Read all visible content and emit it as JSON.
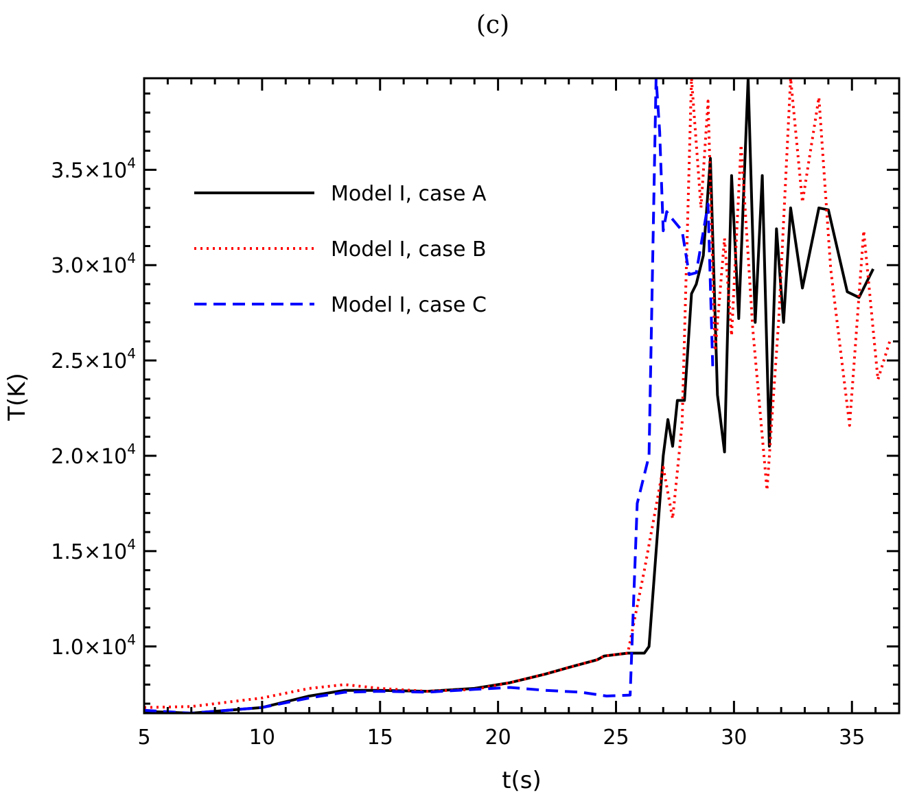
{
  "chart_data": {
    "type": "line",
    "panel_label": "(c)",
    "xlabel": "t(s)",
    "ylabel": "T(K)",
    "xlim": [
      5,
      37
    ],
    "ylim": [
      6500,
      39800
    ],
    "x_ticks": [
      5,
      10,
      15,
      20,
      25,
      30,
      35
    ],
    "x_tick_labels": [
      "5",
      "10",
      "15",
      "20",
      "25",
      "30",
      "35"
    ],
    "y_ticks": [
      10000,
      15000,
      20000,
      25000,
      30000,
      35000
    ],
    "y_tick_mantissas": [
      "1.0",
      "1.5",
      "2.0",
      "2.5",
      "3.0",
      "3.5"
    ],
    "y_tick_base": "×10",
    "y_tick_exponent": "4",
    "legend_position": "upper-left",
    "series": [
      {
        "name": "Model I, case A",
        "color": "#000000",
        "style": "solid",
        "x": [
          5,
          7,
          10,
          12,
          13.5,
          15,
          17,
          19,
          20.5,
          22,
          23,
          24.2,
          24.5,
          25.5,
          26.2,
          26.4,
          27,
          27.2,
          27.4,
          27.6,
          27.9,
          28.2,
          28.4,
          28.7,
          29,
          29.3,
          29.6,
          29.9,
          30.2,
          30.6,
          30.9,
          31.2,
          31.5,
          31.8,
          32.1,
          32.4,
          32.9,
          33.6,
          34,
          34.8,
          35.3,
          35.9
        ],
        "y": [
          6600,
          6500,
          6800,
          7400,
          7700,
          7700,
          7650,
          7800,
          8100,
          8550,
          8900,
          9300,
          9500,
          9650,
          9650,
          10000,
          20000,
          21900,
          20500,
          22900,
          22900,
          28500,
          29000,
          30500,
          35600,
          23200,
          20200,
          34700,
          27200,
          39800,
          27000,
          34700,
          20500,
          31900,
          27000,
          33000,
          28800,
          33000,
          32900,
          28600,
          28300,
          29800
        ]
      },
      {
        "name": "Model I, case B",
        "color": "#ff0000",
        "style": "dotted",
        "x": [
          5,
          7,
          10,
          12,
          13.5,
          15,
          17,
          19,
          20.5,
          22,
          23,
          24.2,
          24.5,
          25.5,
          26.2,
          27,
          27.4,
          27.8,
          28.2,
          28.6,
          28.9,
          29.2,
          29.6,
          29.9,
          30.3,
          30.8,
          31.4,
          31.9,
          32.4,
          32.9,
          33.6,
          34.1,
          34.9,
          35.5,
          36.1,
          36.6
        ],
        "y": [
          6800,
          6850,
          7300,
          7800,
          8000,
          7800,
          7650,
          7750,
          8100,
          8550,
          8900,
          9300,
          9500,
          9650,
          14000,
          19400,
          16700,
          21700,
          39800,
          33000,
          38600,
          25500,
          31400,
          26300,
          36300,
          26600,
          18200,
          27200,
          39800,
          33300,
          38800,
          29800,
          21600,
          31800,
          24000,
          26000
        ]
      },
      {
        "name": "Model I, case C",
        "color": "#0000ff",
        "style": "dashed",
        "x": [
          5,
          7,
          10,
          12,
          13.5,
          15,
          17,
          19,
          20.5,
          22,
          23.5,
          24.6,
          25.6,
          25.9,
          26.4,
          26.7,
          26.85,
          27,
          27.15,
          27.4,
          27.8,
          28.1,
          28.4,
          28.9,
          29.1
        ],
        "y": [
          6650,
          6500,
          6800,
          7300,
          7600,
          7650,
          7600,
          7750,
          7850,
          7700,
          7600,
          7400,
          7450,
          17500,
          20000,
          39800,
          37000,
          31800,
          32800,
          32400,
          31800,
          29500,
          29600,
          33200,
          24700
        ]
      }
    ]
  }
}
